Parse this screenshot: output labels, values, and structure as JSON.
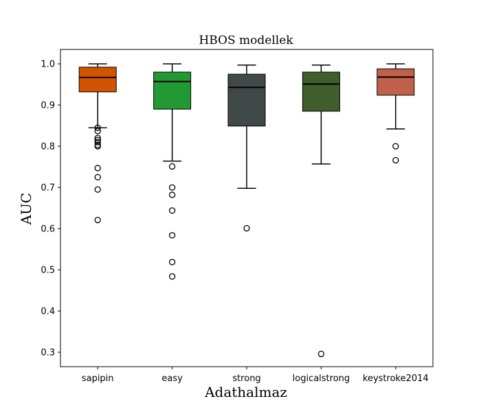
{
  "chart_data": {
    "type": "boxplot",
    "title": "HBOS modellek",
    "xlabel": "Adathalmaz",
    "ylabel": "AUC",
    "ylim": [
      0.265,
      1.035
    ],
    "yticks": [
      0.3,
      0.4,
      0.5,
      0.6,
      0.7,
      0.8,
      0.9,
      1.0
    ],
    "ytick_labels": [
      "0.3",
      "0.4",
      "0.5",
      "0.6",
      "0.7",
      "0.8",
      "0.9",
      "1.0"
    ],
    "grid": false,
    "categories": [
      "sapipin",
      "easy",
      "strong",
      "logicalstrong",
      "keystroke2014"
    ],
    "boxes": [
      {
        "category": "sapipin",
        "color": "#d35400",
        "whisker_low": 0.845,
        "q1": 0.932,
        "median": 0.967,
        "q3": 0.992,
        "whisker_high": 1.0,
        "outliers": [
          0.845,
          0.837,
          0.82,
          0.815,
          0.81,
          0.803,
          0.8,
          0.747,
          0.725,
          0.695,
          0.621
        ]
      },
      {
        "category": "easy",
        "color": "#229933",
        "whisker_low": 0.764,
        "q1": 0.89,
        "median": 0.957,
        "q3": 0.98,
        "whisker_high": 1.0,
        "outliers": [
          0.751,
          0.7,
          0.682,
          0.644,
          0.584,
          0.519,
          0.484
        ]
      },
      {
        "category": "strong",
        "color": "#404848",
        "whisker_low": 0.698,
        "q1": 0.849,
        "median": 0.943,
        "q3": 0.975,
        "whisker_high": 0.997,
        "outliers": [
          0.601
        ]
      },
      {
        "category": "logicalstrong",
        "color": "#3e5e2b",
        "whisker_low": 0.757,
        "q1": 0.885,
        "median": 0.951,
        "q3": 0.98,
        "whisker_high": 0.997,
        "outliers": [
          0.296
        ]
      },
      {
        "category": "keystroke2014",
        "color": "#c0604a",
        "whisker_low": 0.842,
        "q1": 0.924,
        "median": 0.968,
        "q3": 0.988,
        "whisker_high": 1.0,
        "outliers": [
          0.8,
          0.766
        ]
      }
    ]
  }
}
